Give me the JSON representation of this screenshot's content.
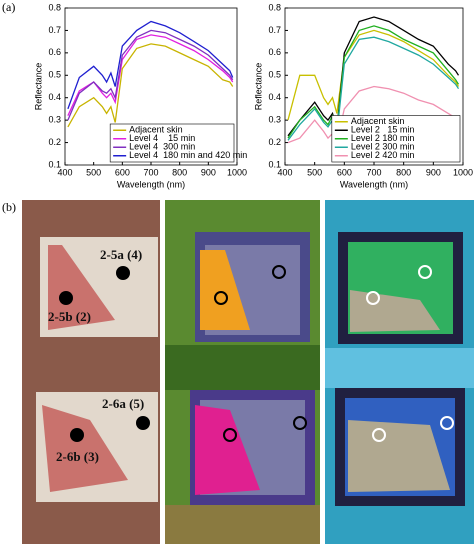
{
  "chart_data": [
    {
      "type": "line",
      "x_label": "Wavelength (nm)",
      "y_label": "Reflectance",
      "x": [
        410,
        450,
        500,
        530,
        545,
        560,
        575,
        600,
        650,
        700,
        750,
        800,
        850,
        900,
        950,
        975,
        985
      ],
      "xlim": [
        400,
        1000
      ],
      "xticks": [
        400,
        500,
        600,
        700,
        800,
        900,
        1000
      ],
      "ylim": [
        0.1,
        0.8
      ],
      "yticks": [
        0.1,
        0.2,
        0.3,
        0.4,
        0.5,
        0.6,
        0.7,
        0.8
      ],
      "legend": "lower right",
      "series": [
        {
          "name": "Adjacent skin",
          "color": "#c8b400",
          "values": [
            0.27,
            0.36,
            0.4,
            0.36,
            0.33,
            0.36,
            0.29,
            0.53,
            0.62,
            0.64,
            0.63,
            0.6,
            0.57,
            0.54,
            0.48,
            0.47,
            0.45
          ]
        },
        {
          "name": "Level 4    15 min",
          "color": "#e020e0",
          "values": [
            0.32,
            0.43,
            0.47,
            0.42,
            0.4,
            0.42,
            0.38,
            0.57,
            0.66,
            0.68,
            0.67,
            0.64,
            0.61,
            0.57,
            0.52,
            0.49,
            0.47
          ]
        },
        {
          "name": "Level 4  300 min",
          "color": "#8030c0",
          "values": [
            0.3,
            0.42,
            0.47,
            0.43,
            0.42,
            0.44,
            0.4,
            0.59,
            0.67,
            0.7,
            0.69,
            0.66,
            0.63,
            0.59,
            0.53,
            0.5,
            0.48
          ]
        },
        {
          "name": "Level 4  180 min and 420 min",
          "color": "#2020d0",
          "values": [
            0.35,
            0.49,
            0.54,
            0.5,
            0.47,
            0.51,
            0.45,
            0.63,
            0.7,
            0.74,
            0.72,
            0.69,
            0.65,
            0.61,
            0.55,
            0.52,
            0.49
          ]
        }
      ]
    },
    {
      "type": "line",
      "x_label": "Wavelength (nm)",
      "y_label": "Reflectance",
      "x": [
        410,
        450,
        500,
        530,
        545,
        560,
        575,
        600,
        650,
        700,
        750,
        800,
        850,
        900,
        950,
        975,
        985
      ],
      "xlim": [
        400,
        1000
      ],
      "xticks": [
        400,
        500,
        600,
        700,
        800,
        900,
        1000
      ],
      "ylim": [
        0.1,
        0.8
      ],
      "yticks": [
        0.1,
        0.2,
        0.3,
        0.4,
        0.5,
        0.6,
        0.7,
        0.8
      ],
      "legend": "lower right",
      "series": [
        {
          "name": "Adjacent skin",
          "color": "#c8c000",
          "values": [
            0.3,
            0.5,
            0.5,
            0.4,
            0.37,
            0.4,
            0.33,
            0.58,
            0.68,
            0.7,
            0.68,
            0.65,
            0.61,
            0.57,
            0.5,
            0.47,
            0.45
          ]
        },
        {
          "name": "Level 2   15 min",
          "color": "#000000",
          "values": [
            0.23,
            0.3,
            0.38,
            0.32,
            0.3,
            0.33,
            0.26,
            0.6,
            0.74,
            0.76,
            0.74,
            0.7,
            0.66,
            0.63,
            0.55,
            0.52,
            0.5
          ]
        },
        {
          "name": "Level 2 180 min",
          "color": "#20b020",
          "values": [
            0.22,
            0.3,
            0.36,
            0.3,
            0.28,
            0.32,
            0.25,
            0.58,
            0.7,
            0.72,
            0.7,
            0.66,
            0.63,
            0.6,
            0.52,
            0.48,
            0.46
          ]
        },
        {
          "name": "Level 2 300 min",
          "color": "#20a8a0",
          "values": [
            0.21,
            0.28,
            0.35,
            0.29,
            0.27,
            0.3,
            0.24,
            0.55,
            0.66,
            0.67,
            0.65,
            0.62,
            0.59,
            0.55,
            0.49,
            0.46,
            0.44
          ]
        },
        {
          "name": "Level 2 420 min",
          "color": "#f090b0",
          "values": [
            0.2,
            0.22,
            0.3,
            0.25,
            0.22,
            0.24,
            0.2,
            0.35,
            0.43,
            0.45,
            0.44,
            0.42,
            0.39,
            0.37,
            0.33,
            0.31,
            0.3
          ]
        }
      ]
    }
  ],
  "panel_labels": [
    "(a)",
    "(b)"
  ],
  "image_labels": [
    "2-5a (4)",
    "2-5b (2)",
    "2-6a (5)",
    "2-6b (3)"
  ]
}
